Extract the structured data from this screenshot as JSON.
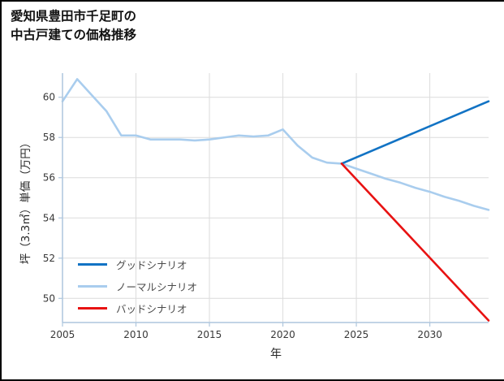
{
  "header": {
    "title_line1": "愛知県豊田市千足町の",
    "title_line2": "中古戸建ての価格推移"
  },
  "chart_data": {
    "type": "line",
    "title": "愛知県豊田市千足町の中古戸建ての価格推移",
    "xlabel": "年",
    "ylabel": "坪（3.3㎡）単価（万円）",
    "xlim": [
      2005,
      2034
    ],
    "ylim": [
      48.8,
      61.2
    ],
    "x_ticks": [
      2005,
      2010,
      2015,
      2020,
      2025,
      2030
    ],
    "y_ticks": [
      50,
      52,
      54,
      56,
      58,
      60
    ],
    "grid": true,
    "legend_position": "lower left",
    "colors": {
      "grid": "#dcdcdc",
      "spine": "#aec6dd",
      "tick_label": "#383838"
    },
    "series": [
      {
        "name": "グッドシナリオ",
        "color": "#1273c4",
        "x": [
          2024,
          2034
        ],
        "y": [
          56.7,
          59.8
        ]
      },
      {
        "name": "ノーマルシナリオ",
        "color": "#a9cdee",
        "x": [
          2005,
          2006,
          2007,
          2008,
          2009,
          2010,
          2011,
          2012,
          2013,
          2014,
          2015,
          2016,
          2017,
          2018,
          2019,
          2020,
          2021,
          2022,
          2023,
          2024,
          2025,
          2026,
          2027,
          2028,
          2029,
          2030,
          2031,
          2032,
          2033,
          2034
        ],
        "y": [
          59.8,
          60.9,
          60.1,
          59.3,
          58.1,
          58.1,
          57.9,
          57.9,
          57.9,
          57.85,
          57.9,
          58.0,
          58.1,
          58.05,
          58.1,
          58.4,
          57.6,
          57.0,
          56.75,
          56.7,
          56.45,
          56.2,
          55.95,
          55.75,
          55.5,
          55.3,
          55.05,
          54.85,
          54.6,
          54.4
        ]
      },
      {
        "name": "バッドシナリオ",
        "color": "#e81212",
        "x": [
          2024,
          2034
        ],
        "y": [
          56.7,
          48.9
        ]
      }
    ]
  }
}
